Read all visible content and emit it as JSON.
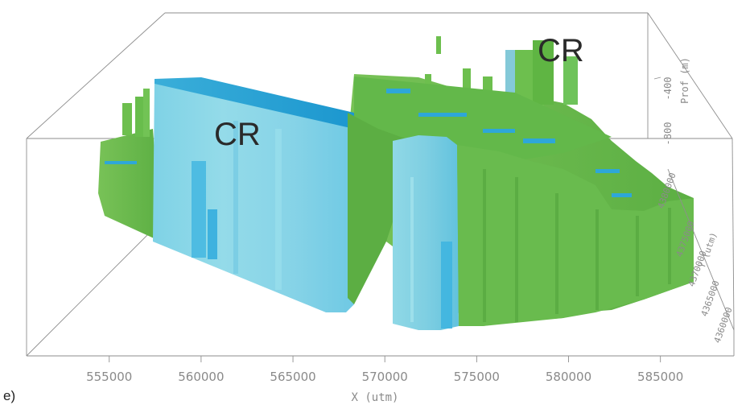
{
  "panel_label": "e)",
  "annotations": [
    "CR",
    "CR"
  ],
  "chart_data": {
    "type": "3d-block-model",
    "xlabel": "X (utm)",
    "ylabel": "Y (utm)",
    "zlabel": "Prof (m)",
    "x_ticks": [
      "555000",
      "560000",
      "565000",
      "570000",
      "575000",
      "580000",
      "585000"
    ],
    "x_tick_values": [
      555000,
      560000,
      565000,
      570000,
      575000,
      580000,
      585000
    ],
    "xlim": [
      550500,
      589000
    ],
    "z_ticks": [
      "-400",
      "-800"
    ],
    "y_ticks": [
      "4360000",
      "4365000",
      "4370000",
      "4375000",
      "4380000"
    ],
    "annotations": [
      "CR",
      "CR"
    ],
    "colors": {
      "green": "#6fbf4f",
      "green_dark": "#4e9f38",
      "cyan": "#8ad8e8",
      "cyan_mid": "#5cc4e3",
      "cyan_deep": "#1fa3dc",
      "axes": "#8e8e8e"
    }
  }
}
